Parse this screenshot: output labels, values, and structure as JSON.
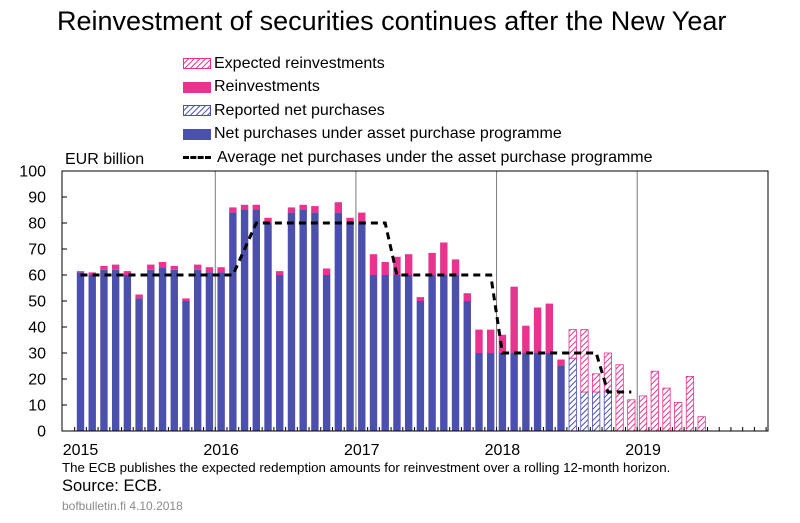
{
  "header": {
    "title": "Reinvestment of securities continues after the New Year"
  },
  "footer": {
    "note": "The ECB publishes the expected redemption amounts for reinvestment over a rolling 12-month horizon.",
    "source": "Source: ECB.",
    "credit": "bofbulletin.fi 4.10.2018"
  },
  "colors": {
    "net_purchases": "#4b50ad",
    "reinvestments": "#e8348f",
    "average_line": "#000000",
    "axis": "#000000",
    "gridline": "#7a7a7a"
  },
  "legend": {
    "items": [
      {
        "label": "Expected reinvestments",
        "style": "hatch-pink"
      },
      {
        "label": "Reinvestments",
        "style": "solid-pink"
      },
      {
        "label": "Reported net purchases",
        "style": "hatch-blue"
      },
      {
        "label": "Net purchases under asset purchase programme",
        "style": "solid-blue"
      },
      {
        "label": "Average net purchases under the asset purchase programme",
        "style": "dashed-line"
      }
    ]
  },
  "chart_data": {
    "type": "bar",
    "stacked": true,
    "ylabel": "EUR billion",
    "ylim": [
      0,
      100
    ],
    "yticks": [
      0,
      10,
      20,
      30,
      40,
      50,
      60,
      70,
      80,
      90,
      100
    ],
    "xtick_labels": [
      "2015",
      "2016",
      "2017",
      "2018",
      "2019"
    ],
    "x_start": "2015-01",
    "months": [
      {
        "net": 61,
        "reinv": 0.5
      },
      {
        "net": 60,
        "reinv": 1
      },
      {
        "net": 62,
        "reinv": 1.5
      },
      {
        "net": 62,
        "reinv": 2
      },
      {
        "net": 60,
        "reinv": 1.5
      },
      {
        "net": 51,
        "reinv": 1.5
      },
      {
        "net": 62,
        "reinv": 2
      },
      {
        "net": 63,
        "reinv": 2
      },
      {
        "net": 62,
        "reinv": 1.5
      },
      {
        "net": 50,
        "reinv": 1
      },
      {
        "net": 62,
        "reinv": 2
      },
      {
        "net": 61,
        "reinv": 2
      },
      {
        "net": 61,
        "reinv": 2
      },
      {
        "net": 84,
        "reinv": 2
      },
      {
        "net": 85,
        "reinv": 2
      },
      {
        "net": 85,
        "reinv": 2
      },
      {
        "net": 80,
        "reinv": 2
      },
      {
        "net": 60,
        "reinv": 1.5
      },
      {
        "net": 84,
        "reinv": 2
      },
      {
        "net": 85,
        "reinv": 2
      },
      {
        "net": 84,
        "reinv": 2.5
      },
      {
        "net": 60,
        "reinv": 2.5
      },
      {
        "net": 84,
        "reinv": 4
      },
      {
        "net": 80,
        "reinv": 2
      },
      {
        "net": 80,
        "reinv": 4
      },
      {
        "net": 60,
        "reinv": 8
      },
      {
        "net": 60,
        "reinv": 5
      },
      {
        "net": 60,
        "reinv": 7
      },
      {
        "net": 60,
        "reinv": 8
      },
      {
        "net": 50,
        "reinv": 1.5
      },
      {
        "net": 60,
        "reinv": 8.5
      },
      {
        "net": 60,
        "reinv": 12.5
      },
      {
        "net": 60,
        "reinv": 6
      },
      {
        "net": 50,
        "reinv": 3
      },
      {
        "net": 30,
        "reinv": 9
      },
      {
        "net": 30,
        "reinv": 9
      },
      {
        "net": 30,
        "reinv": 7
      },
      {
        "net": 30,
        "reinv": 25.5
      },
      {
        "net": 30,
        "reinv": 10.5
      },
      {
        "net": 30,
        "reinv": 17.5
      },
      {
        "net": 30,
        "reinv": 19
      },
      {
        "net": 25,
        "reinv": 2.5
      },
      {
        "reported": 28,
        "expected": 11
      },
      {
        "reported": 15,
        "expected": 24
      },
      {
        "reported": 15,
        "expected": 7
      },
      {
        "reported": 15,
        "expected": 15
      },
      {
        "expected": 25.5
      },
      {
        "expected": 12
      },
      {
        "expected": 13.5
      },
      {
        "expected": 23
      },
      {
        "expected": 16.5
      },
      {
        "expected": 11
      },
      {
        "expected": 21
      },
      {
        "expected": 5.5
      }
    ],
    "average_line": {
      "name": "Average net purchases under the asset purchase programme",
      "points": [
        [
          "2015-01",
          60
        ],
        [
          "2016-02",
          60
        ],
        [
          "2016-04",
          80
        ],
        [
          "2017-03",
          80
        ],
        [
          "2017-04",
          60
        ],
        [
          "2017-12",
          60
        ],
        [
          "2018-01",
          30
        ],
        [
          "2018-09",
          30
        ],
        [
          "2018-10",
          15
        ],
        [
          "2018-12",
          15
        ]
      ]
    },
    "grid": "vertical lines at year boundaries",
    "legend_position": "top"
  }
}
